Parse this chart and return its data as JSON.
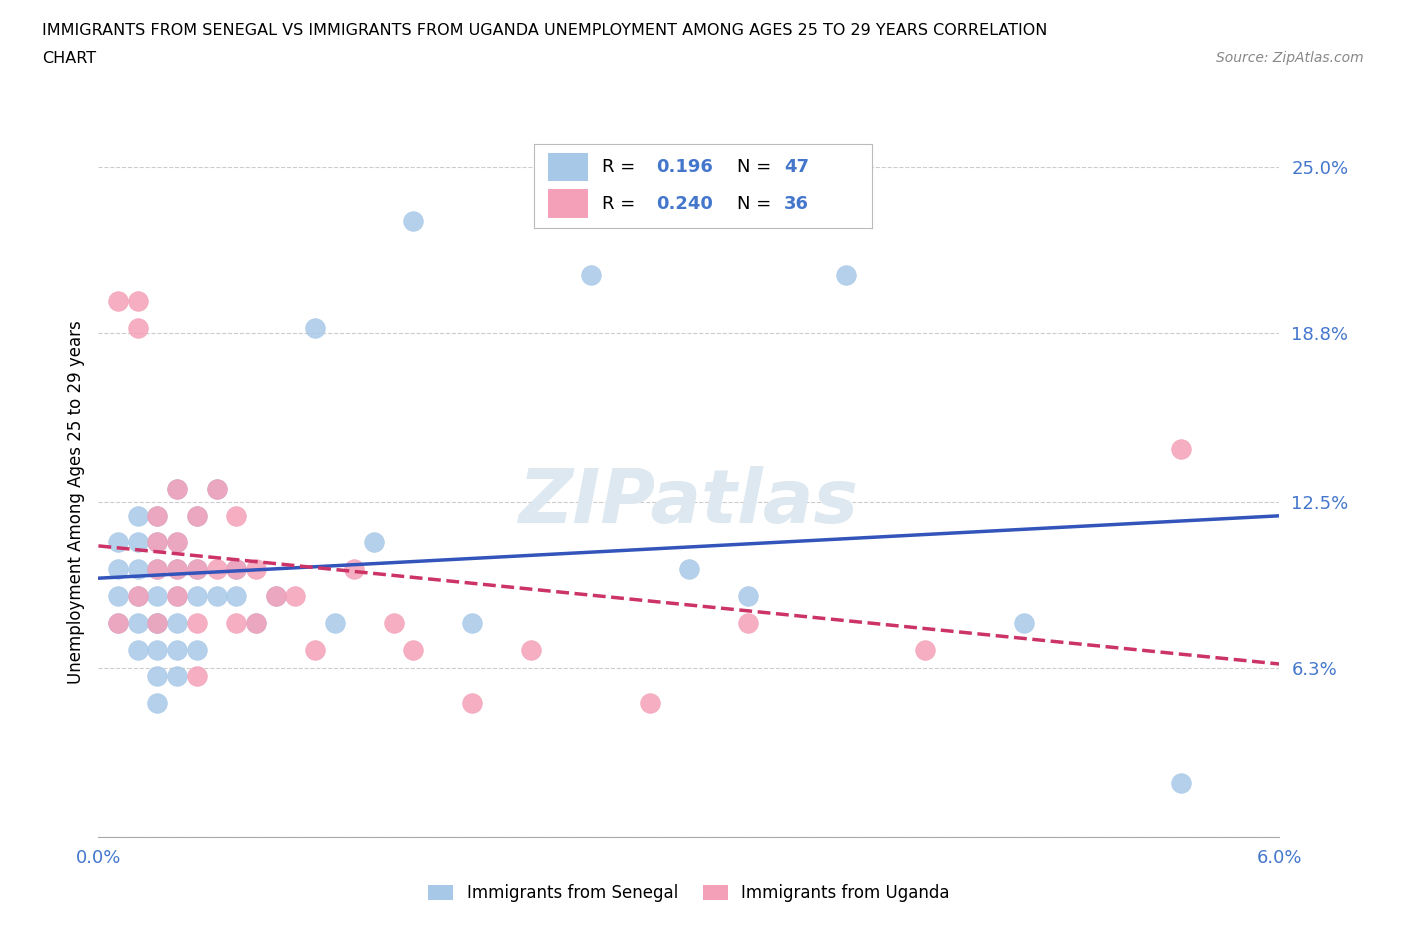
{
  "title_line1": "IMMIGRANTS FROM SENEGAL VS IMMIGRANTS FROM UGANDA UNEMPLOYMENT AMONG AGES 25 TO 29 YEARS CORRELATION",
  "title_line2": "CHART",
  "source": "Source: ZipAtlas.com",
  "ylabel": "Unemployment Among Ages 25 to 29 years",
  "xmin": 0.0,
  "xmax": 0.06,
  "ymin": 0.0,
  "ymax": 0.25,
  "ytick_vals": [
    0.0,
    0.063,
    0.125,
    0.188,
    0.25
  ],
  "ytick_labels": [
    "",
    "6.3%",
    "12.5%",
    "18.8%",
    "25.0%"
  ],
  "xtick_vals": [
    0.0,
    0.01,
    0.02,
    0.03,
    0.04,
    0.05,
    0.06
  ],
  "xtick_labels": [
    "0.0%",
    "",
    "",
    "",
    "",
    "",
    "6.0%"
  ],
  "senegal_color": "#a8c8e8",
  "uganda_color": "#f4a0b8",
  "trend_senegal_color": "#3355bb",
  "trend_uganda_color": "#cc3366",
  "trend_uganda_style": "--",
  "watermark_color": "#dde8f0",
  "label_color": "#4477cc",
  "R_senegal": 0.196,
  "N_senegal": 47,
  "R_uganda": 0.24,
  "N_uganda": 36,
  "senegal_x": [
    0.001,
    0.001,
    0.001,
    0.001,
    0.002,
    0.002,
    0.002,
    0.002,
    0.002,
    0.002,
    0.003,
    0.003,
    0.003,
    0.003,
    0.003,
    0.003,
    0.003,
    0.003,
    0.003,
    0.004,
    0.004,
    0.004,
    0.004,
    0.004,
    0.004,
    0.004,
    0.005,
    0.005,
    0.005,
    0.005,
    0.006,
    0.006,
    0.007,
    0.007,
    0.008,
    0.009,
    0.011,
    0.012,
    0.014,
    0.016,
    0.019,
    0.025,
    0.03,
    0.033,
    0.038,
    0.047,
    0.055
  ],
  "senegal_y": [
    0.08,
    0.09,
    0.1,
    0.11,
    0.07,
    0.08,
    0.09,
    0.1,
    0.11,
    0.12,
    0.05,
    0.06,
    0.07,
    0.08,
    0.09,
    0.1,
    0.11,
    0.12,
    0.08,
    0.06,
    0.07,
    0.08,
    0.09,
    0.1,
    0.11,
    0.13,
    0.07,
    0.09,
    0.1,
    0.12,
    0.09,
    0.13,
    0.09,
    0.1,
    0.08,
    0.09,
    0.19,
    0.08,
    0.11,
    0.23,
    0.08,
    0.21,
    0.1,
    0.09,
    0.21,
    0.08,
    0.02
  ],
  "uganda_x": [
    0.001,
    0.001,
    0.002,
    0.002,
    0.002,
    0.003,
    0.003,
    0.003,
    0.003,
    0.004,
    0.004,
    0.004,
    0.004,
    0.005,
    0.005,
    0.005,
    0.005,
    0.006,
    0.006,
    0.007,
    0.007,
    0.007,
    0.008,
    0.008,
    0.009,
    0.01,
    0.011,
    0.013,
    0.015,
    0.016,
    0.019,
    0.022,
    0.028,
    0.033,
    0.042,
    0.055
  ],
  "uganda_y": [
    0.08,
    0.2,
    0.19,
    0.2,
    0.09,
    0.08,
    0.1,
    0.11,
    0.12,
    0.09,
    0.1,
    0.11,
    0.13,
    0.06,
    0.08,
    0.1,
    0.12,
    0.1,
    0.13,
    0.08,
    0.1,
    0.12,
    0.08,
    0.1,
    0.09,
    0.09,
    0.07,
    0.1,
    0.08,
    0.07,
    0.05,
    0.07,
    0.05,
    0.08,
    0.07,
    0.145
  ]
}
